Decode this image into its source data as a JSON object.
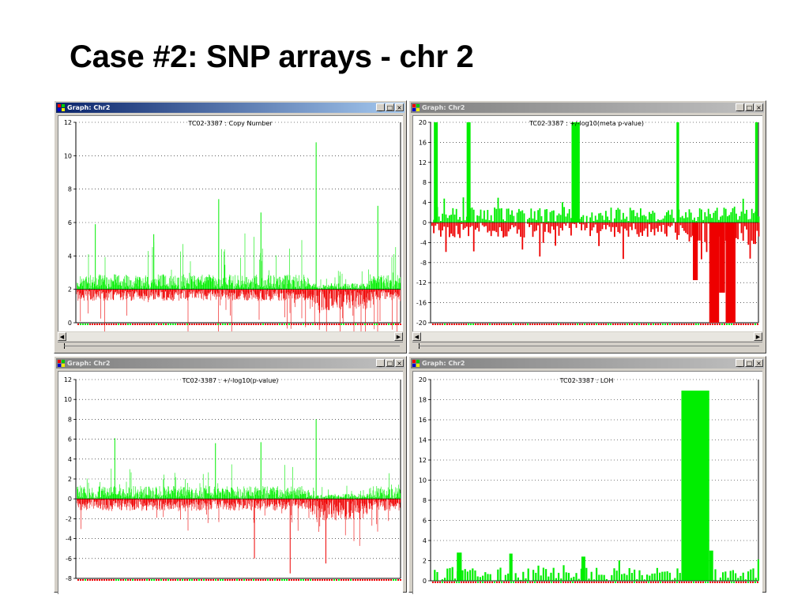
{
  "slide": {
    "title": "Case #2: SNP arrays - chr 2"
  },
  "colors": {
    "positive": "#00ee00",
    "negative": "#ee0000",
    "grid": "#000000",
    "active_title": "#0a246a",
    "inactive_title": "#808080"
  },
  "windows": [
    {
      "title": "Graph: Chr2",
      "active": true
    },
    {
      "title": "Graph: Chr2",
      "active": false
    },
    {
      "title": "Graph: Chr2",
      "active": false
    },
    {
      "title": "Graph: Chr2",
      "active": false
    }
  ],
  "window_buttons": {
    "minimize": "_",
    "maximize": "□",
    "close": "×"
  },
  "chart_data": [
    {
      "type": "bar",
      "title": "TC02-3387 :  Copy Number",
      "ylim": [
        0,
        12
      ],
      "baseline": 2,
      "yticks": [
        "12",
        "10",
        "8",
        "6",
        "4",
        "2",
        "0"
      ],
      "spikes": [
        {
          "x": 0.06,
          "y": 5.9
        },
        {
          "x": 0.24,
          "y": 5.3
        },
        {
          "x": 0.44,
          "y": 7.4
        },
        {
          "x": 0.57,
          "y": 6.6
        },
        {
          "x": 0.74,
          "y": 10.8
        },
        {
          "x": 0.93,
          "y": 7.0
        }
      ],
      "grid": true
    },
    {
      "type": "bar",
      "title": "TC02-3387 :  +/-log10(meta p-value)",
      "ylim": [
        -20,
        20
      ],
      "baseline": 0,
      "yticks": [
        "20",
        "16",
        "12",
        "8",
        "4",
        "0",
        "-4",
        "-8",
        "-12",
        "-16",
        "-20"
      ],
      "blocks": [
        {
          "x": 0.01,
          "w": 0.012,
          "y": 20
        },
        {
          "x": 0.11,
          "w": 0.012,
          "y": 20
        },
        {
          "x": 0.43,
          "w": 0.025,
          "y": 20
        },
        {
          "x": 0.75,
          "w": 0.008,
          "y": 20
        },
        {
          "x": 0.99,
          "w": 0.008,
          "y": 20
        },
        {
          "x": 0.8,
          "w": 0.015,
          "y": -11.5
        },
        {
          "x": 0.85,
          "w": 0.03,
          "y": -20
        },
        {
          "x": 0.88,
          "w": 0.018,
          "y": -14
        },
        {
          "x": 0.9,
          "w": 0.03,
          "y": -20
        }
      ],
      "grid": true
    },
    {
      "type": "bar",
      "title": "TC02-3387 :  +/-log10(p-value)",
      "ylim": [
        -8,
        12
      ],
      "baseline": 0,
      "yticks": [
        "12",
        "10",
        "8",
        "6",
        "4",
        "2",
        "0",
        "-2",
        "-4",
        "-6",
        "-8"
      ],
      "spikes": [
        {
          "x": 0.12,
          "y": 6.1
        },
        {
          "x": 0.43,
          "y": 5.6
        },
        {
          "x": 0.57,
          "y": 5.7
        },
        {
          "x": 0.74,
          "y": 8.0
        },
        {
          "x": 0.66,
          "y": -7.5
        },
        {
          "x": 0.77,
          "y": -6.5
        },
        {
          "x": 0.55,
          "y": -6.0
        }
      ],
      "grid": true
    },
    {
      "type": "bar",
      "title": "TC02-3387 : LOH",
      "ylim": [
        0,
        20
      ],
      "baseline": 0,
      "yticks": [
        "20",
        "18",
        "16",
        "14",
        "12",
        "10",
        "8",
        "6",
        "4",
        "2",
        "0"
      ],
      "blocks": [
        {
          "x": 0.765,
          "w": 0.085,
          "y": 18.9
        },
        {
          "x": 0.85,
          "w": 0.012,
          "y": 3.0
        },
        {
          "x": 0.08,
          "w": 0.015,
          "y": 2.8
        },
        {
          "x": 0.24,
          "w": 0.01,
          "y": 2.7
        },
        {
          "x": 0.46,
          "w": 0.012,
          "y": 2.4
        }
      ],
      "grid": true
    }
  ]
}
